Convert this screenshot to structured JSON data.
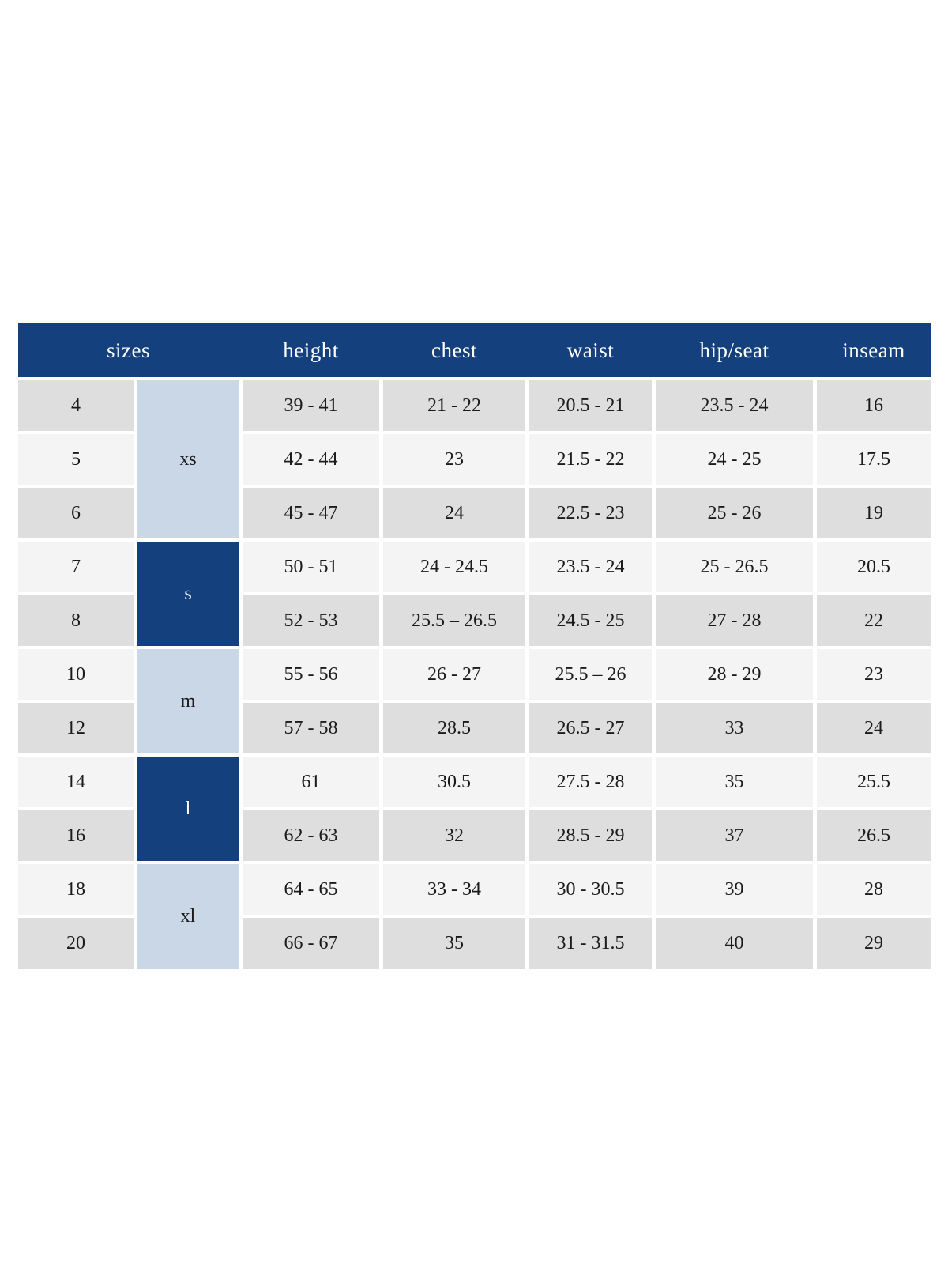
{
  "colors": {
    "header_navy": "#14417d",
    "group_navy": "#14417d",
    "group_light_blue": "#cad7e7",
    "row_gray": "#dedede",
    "row_light": "#f4f4f4",
    "header_text": "#ffffff",
    "body_text": "#1b1b1b",
    "page_background": "#ffffff"
  },
  "size_chart": {
    "columns": {
      "sizes": "sizes",
      "height": "height",
      "chest": "chest",
      "waist": "waist",
      "hip_seat": "hip/seat",
      "inseam": "inseam"
    },
    "groups": [
      {
        "label": "xs",
        "rows_spanned": 3,
        "variant": "light"
      },
      {
        "label": "s",
        "rows_spanned": 2,
        "variant": "dark"
      },
      {
        "label": "m",
        "rows_spanned": 2,
        "variant": "light"
      },
      {
        "label": "l",
        "rows_spanned": 2,
        "variant": "dark"
      },
      {
        "label": "xl",
        "rows_spanned": 2,
        "variant": "light"
      }
    ],
    "rows": [
      {
        "size": "4",
        "height": "39 - 41",
        "chest": "21 - 22",
        "waist": "20.5 - 21",
        "hip_seat": "23.5 - 24",
        "inseam": "16"
      },
      {
        "size": "5",
        "height": "42 - 44",
        "chest": "23",
        "waist": "21.5 - 22",
        "hip_seat": "24 - 25",
        "inseam": "17.5"
      },
      {
        "size": "6",
        "height": "45 - 47",
        "chest": "24",
        "waist": "22.5 - 23",
        "hip_seat": "25 - 26",
        "inseam": "19"
      },
      {
        "size": "7",
        "height": "50 - 51",
        "chest": "24 - 24.5",
        "waist": "23.5 - 24",
        "hip_seat": "25 - 26.5",
        "inseam": "20.5"
      },
      {
        "size": "8",
        "height": "52 - 53",
        "chest": "25.5 – 26.5",
        "waist": "24.5 - 25",
        "hip_seat": "27 - 28",
        "inseam": "22"
      },
      {
        "size": "10",
        "height": "55 - 56",
        "chest": "26 - 27",
        "waist": "25.5 – 26",
        "hip_seat": "28 - 29",
        "inseam": "23"
      },
      {
        "size": "12",
        "height": "57 - 58",
        "chest": "28.5",
        "waist": "26.5 - 27",
        "hip_seat": "33",
        "inseam": "24"
      },
      {
        "size": "14",
        "height": "61",
        "chest": "30.5",
        "waist": "27.5 - 28",
        "hip_seat": "35",
        "inseam": "25.5"
      },
      {
        "size": "16",
        "height": "62 - 63",
        "chest": "32",
        "waist": "28.5 - 29",
        "hip_seat": "37",
        "inseam": "26.5"
      },
      {
        "size": "18",
        "height": "64 - 65",
        "chest": "33 - 34",
        "waist": "30 - 30.5",
        "hip_seat": "39",
        "inseam": "28"
      },
      {
        "size": "20",
        "height": "66 - 67",
        "chest": "35",
        "waist": "31 - 31.5",
        "hip_seat": "40",
        "inseam": "29"
      }
    ]
  }
}
